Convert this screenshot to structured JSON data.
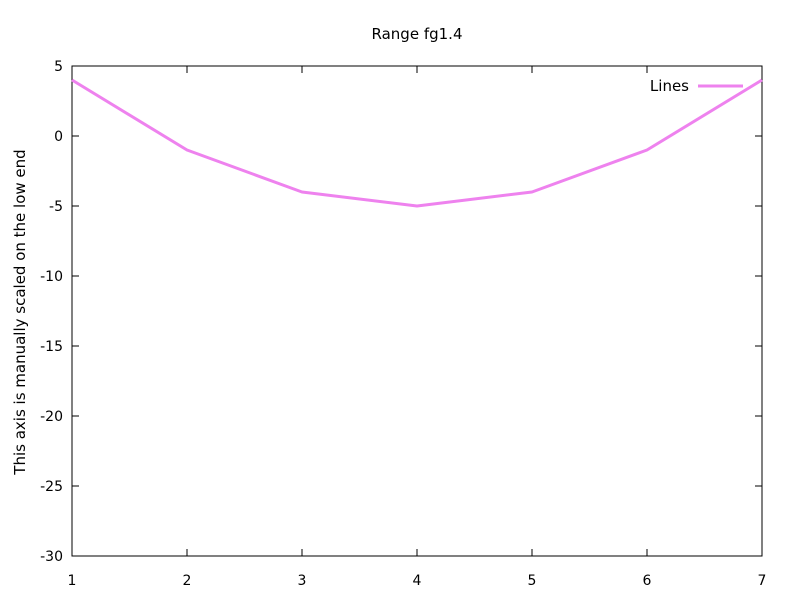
{
  "chart_data": {
    "type": "line",
    "title": "Range fg1.4",
    "xlabel": "",
    "ylabel": "This axis is manually scaled on the low end",
    "xlim": [
      1,
      7
    ],
    "ylim": [
      -30,
      5
    ],
    "xticks": [
      1,
      2,
      3,
      4,
      5,
      6,
      7
    ],
    "yticks": [
      5,
      0,
      -5,
      -10,
      -15,
      -20,
      -25,
      -30
    ],
    "grid": false,
    "legend_position": "top-right",
    "series": [
      {
        "name": "Lines",
        "color": "#ee82ee",
        "x": [
          1,
          2,
          3,
          4,
          5,
          6,
          7
        ],
        "y": [
          4,
          -1,
          -4,
          -5,
          -4,
          -1,
          4
        ]
      }
    ]
  }
}
